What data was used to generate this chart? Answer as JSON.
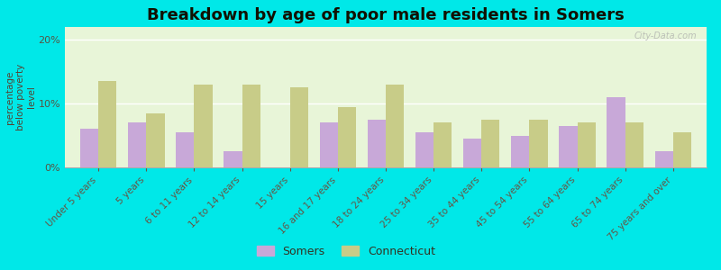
{
  "title": "Breakdown by age of poor male residents in Somers",
  "ylabel": "percentage\nbelow poverty\nlevel",
  "categories": [
    "Under 5 years",
    "5 years",
    "6 to 11 years",
    "12 to 14 years",
    "15 years",
    "16 and 17 years",
    "18 to 24 years",
    "25 to 34 years",
    "35 to 44 years",
    "45 to 54 years",
    "55 to 64 years",
    "65 to 74 years",
    "75 years and over"
  ],
  "somers": [
    6.0,
    7.0,
    5.5,
    2.5,
    0.0,
    7.0,
    7.5,
    5.5,
    4.5,
    5.0,
    6.5,
    11.0,
    2.5
  ],
  "connecticut": [
    13.5,
    8.5,
    13.0,
    13.0,
    12.5,
    9.5,
    13.0,
    7.0,
    7.5,
    7.5,
    7.0,
    7.0,
    5.5
  ],
  "somers_color": "#c8a8d8",
  "connecticut_color": "#c8cc88",
  "background_color": "#e8f5d8",
  "outer_background": "#00e8e8",
  "ylim": [
    0,
    22
  ],
  "yticks": [
    0,
    10,
    20
  ],
  "ytick_labels": [
    "0%",
    "10%",
    "20%"
  ],
  "watermark": "City-Data.com",
  "title_fontsize": 13,
  "axis_fontsize": 7.5,
  "tick_fontsize": 8,
  "bar_width": 0.38
}
